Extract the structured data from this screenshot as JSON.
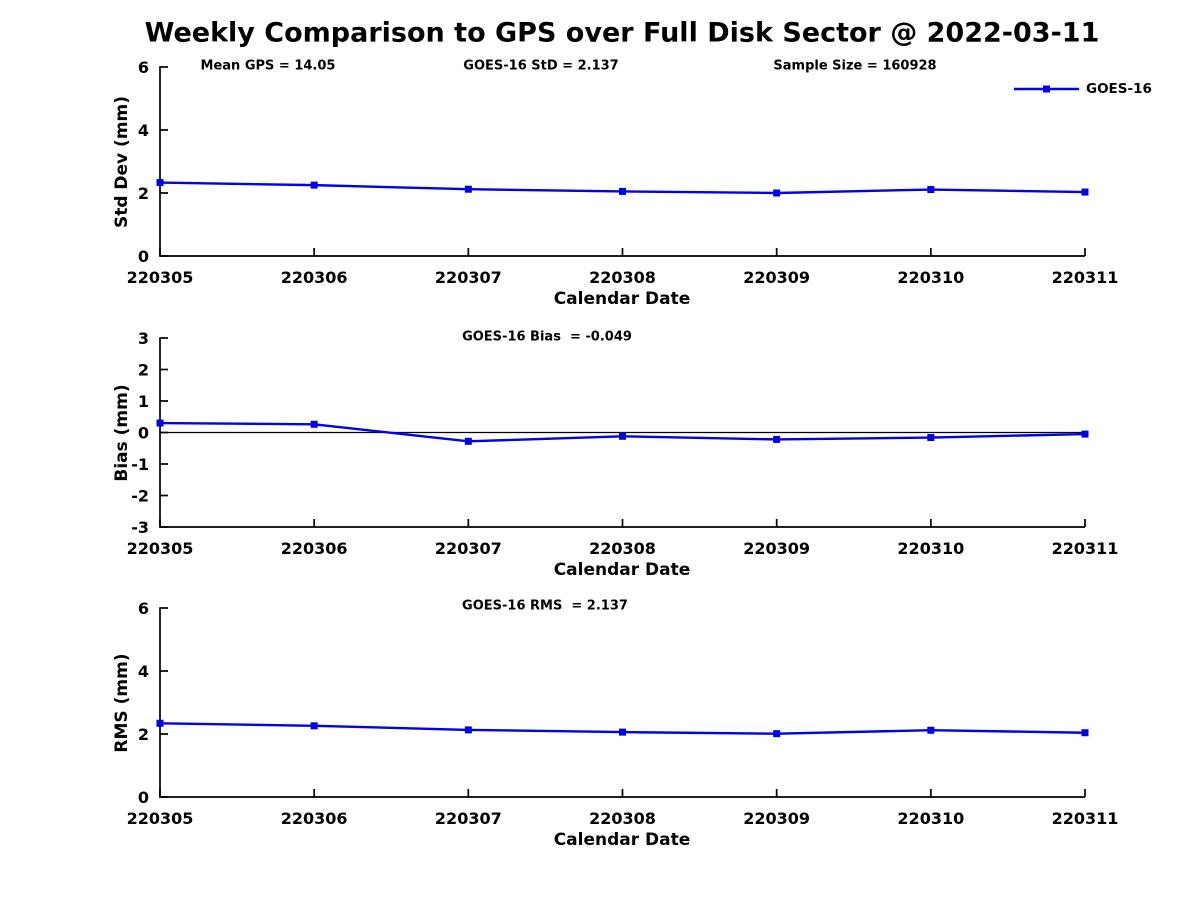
{
  "title": "Weekly Comparison to GPS over Full Disk Sector @ 2022-03-11",
  "legend": {
    "label": "GOES-16",
    "color": "#0000ee",
    "marker": "square"
  },
  "chart_data": [
    {
      "type": "line",
      "name": "std-dev",
      "annotations": [
        "Mean GPS = 14.05",
        "GOES-16 StD = 2.137",
        "Sample Size = 160928"
      ],
      "ylabel": "Std Dev (mm)",
      "xlabel": "Calendar Date",
      "ylim": [
        0,
        6
      ],
      "yticks": [
        0,
        2,
        4,
        6
      ],
      "zero_line": false,
      "grid": false,
      "legend_position": "top-right",
      "categories": [
        "220305",
        "220306",
        "220307",
        "220308",
        "220309",
        "220310",
        "220311"
      ],
      "series": [
        {
          "name": "GOES-16",
          "color": "#0000ee",
          "values": [
            2.33,
            2.25,
            2.12,
            2.05,
            2.0,
            2.11,
            2.03
          ]
        }
      ]
    },
    {
      "type": "line",
      "name": "bias",
      "annotations": [
        "GOES-16 Bias  = -0.049"
      ],
      "ylabel": "Bias (mm)",
      "xlabel": "Calendar Date",
      "ylim": [
        -3,
        3
      ],
      "yticks": [
        -3,
        -2,
        -1,
        0,
        1,
        2,
        3
      ],
      "zero_line": true,
      "grid": false,
      "categories": [
        "220305",
        "220306",
        "220307",
        "220308",
        "220309",
        "220310",
        "220311"
      ],
      "series": [
        {
          "name": "GOES-16",
          "color": "#0000ee",
          "values": [
            0.3,
            0.26,
            -0.28,
            -0.12,
            -0.22,
            -0.16,
            -0.05
          ]
        }
      ]
    },
    {
      "type": "line",
      "name": "rms",
      "annotations": [
        "GOES-16 RMS  = 2.137"
      ],
      "ylabel": "RMS (mm)",
      "xlabel": "Calendar Date",
      "ylim": [
        0,
        6
      ],
      "yticks": [
        0,
        2,
        4,
        6
      ],
      "zero_line": false,
      "grid": false,
      "categories": [
        "220305",
        "220306",
        "220307",
        "220308",
        "220309",
        "220310",
        "220311"
      ],
      "series": [
        {
          "name": "GOES-16",
          "color": "#0000ee",
          "values": [
            2.34,
            2.26,
            2.13,
            2.06,
            2.01,
            2.12,
            2.04
          ]
        }
      ]
    }
  ]
}
